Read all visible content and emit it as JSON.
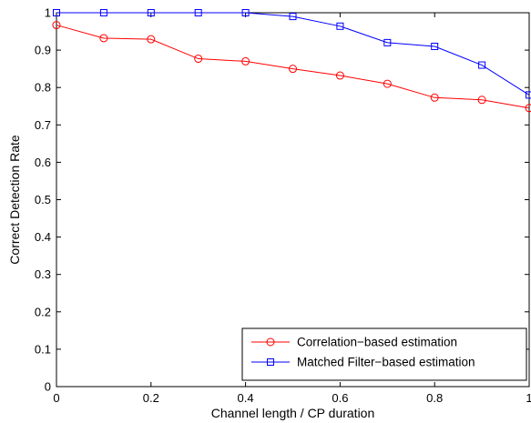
{
  "chart_data": {
    "type": "line",
    "title": "",
    "xlabel": "Channel length / CP duration",
    "ylabel": "Correct Detection Rate",
    "xlim": [
      0,
      1
    ],
    "ylim": [
      0,
      1
    ],
    "x_ticks": [
      "0",
      "0.2",
      "0.4",
      "0.6",
      "0.8",
      "1"
    ],
    "y_ticks": [
      "0",
      "0.1",
      "0.2",
      "0.3",
      "0.4",
      "0.5",
      "0.6",
      "0.7",
      "0.8",
      "0.9",
      "1"
    ],
    "x": [
      0,
      0.1,
      0.2,
      0.3,
      0.4,
      0.5,
      0.6,
      0.7,
      0.8,
      0.9,
      1.0
    ],
    "grid": false,
    "legend_position": "bottom-right",
    "series": [
      {
        "name": "Correlation−based estimation",
        "color": "#ff0000",
        "marker": "circle",
        "values": [
          0.967,
          0.932,
          0.929,
          0.877,
          0.87,
          0.85,
          0.832,
          0.81,
          0.773,
          0.767,
          0.745
        ]
      },
      {
        "name": "Matched Filter−based estimation",
        "color": "#0000ff",
        "marker": "square",
        "values": [
          1.0,
          1.0,
          1.0,
          1.0,
          1.0,
          0.99,
          0.964,
          0.92,
          0.91,
          0.86,
          0.78
        ]
      }
    ]
  }
}
